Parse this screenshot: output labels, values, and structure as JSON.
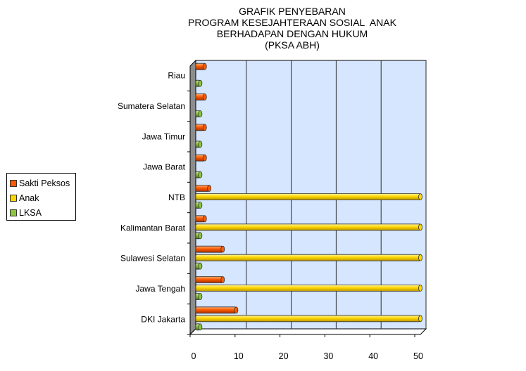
{
  "chart_data": {
    "type": "bar",
    "orientation": "horizontal",
    "title_lines": [
      "GRAFIK PENYEBARAN",
      "PROGRAM KESEJAHTERAAN SOSIAL  ANAK",
      "BERHADAPAN DENGAN HUKUM",
      "(PKSA ABH)"
    ],
    "categories": [
      "DKI Jakarta",
      "Jawa Tengah",
      "Sulawesi Selatan",
      "Kalimantan Barat",
      "NTB",
      "Jawa Barat",
      "Jawa Timur",
      "Sumatera Selatan",
      "Riau"
    ],
    "series": [
      {
        "name": "Sakti Peksos",
        "color": "#ff5a00",
        "values": [
          9,
          6,
          6,
          2,
          3,
          2,
          2,
          2,
          2
        ]
      },
      {
        "name": "Anak",
        "color": "#ffd700",
        "values": [
          50,
          50,
          50,
          50,
          50,
          0,
          0,
          0,
          0
        ]
      },
      {
        "name": "LKSA",
        "color": "#8cc63f",
        "values": [
          1,
          1,
          1,
          1,
          1,
          1,
          1,
          1,
          1
        ]
      }
    ],
    "xlim": [
      0,
      50
    ],
    "xticks": [
      "0",
      "10",
      "20",
      "30",
      "40",
      "50"
    ],
    "grid": true,
    "legend_position": "left",
    "plot_background": "#d6e6ff"
  }
}
